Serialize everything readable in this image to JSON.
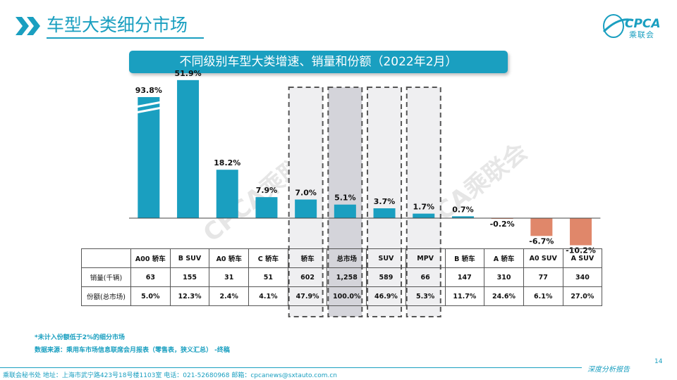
{
  "header": {
    "title": "车型大类细分市场",
    "logo_text": "CPCA",
    "logo_subtext": "乘联会"
  },
  "chart_banner": "不同级别车型大类增速、销量和份额（2022年2月）",
  "chart_data": {
    "type": "bar",
    "categories": [
      "A00 轿车",
      "B SUV",
      "A0 轿车",
      "C 轿车",
      "轿车",
      "总市场",
      "SUV",
      "MPV",
      "B 轿车",
      "A 轿车",
      "A0 SUV",
      "A SUV"
    ],
    "values": [
      93.8,
      51.9,
      18.2,
      7.9,
      7.0,
      5.1,
      3.7,
      1.7,
      0.7,
      -0.2,
      -6.7,
      -10.2
    ],
    "value_labels": [
      "93.8%",
      "51.9%",
      "18.2%",
      "7.9%",
      "7.0%",
      "5.1%",
      "3.7%",
      "1.7%",
      "0.7%",
      "-0.2%",
      "-6.7%",
      "-10.2%"
    ],
    "broken_axis_categories": [
      "A00 轿车"
    ],
    "highlighted_categories": [
      "轿车",
      "总市场",
      "SUV",
      "MPV"
    ],
    "emphasized_category": "总市场",
    "colors": {
      "positive": "#1a9fc0",
      "negative": "#e0876a",
      "highlight_fill": "#efeff1",
      "emphasis_fill": "#d4d4da",
      "dash_border": "#555555"
    },
    "grid": false,
    "legend": "none"
  },
  "table": {
    "rows": [
      {
        "label": "销量(千辆)",
        "values": [
          "63",
          "155",
          "31",
          "51",
          "602",
          "1,258",
          "589",
          "66",
          "147",
          "310",
          "77",
          "340"
        ]
      },
      {
        "label": "份额(总市场)",
        "values": [
          "5.0%",
          "12.3%",
          "2.4%",
          "4.1%",
          "47.9%",
          "100.0%",
          "46.9%",
          "5.3%",
          "11.7%",
          "24.6%",
          "6.1%",
          "27.0%"
        ]
      }
    ]
  },
  "watermark": "CPCA乘联会",
  "footnote": "*未计入份额低于2%的细分市场",
  "source": "数据来源：乘用车市场信息联席会月报表（零售表，狭义汇总） -终稿",
  "page_number": "14",
  "footer": {
    "text": "乘联会秘书处   地址：上海市武宁路423号18号楼1103室   电话：021-52680968   邮箱：cpcanews@sxtauto.com.cn",
    "tag": "深度分析报告"
  }
}
